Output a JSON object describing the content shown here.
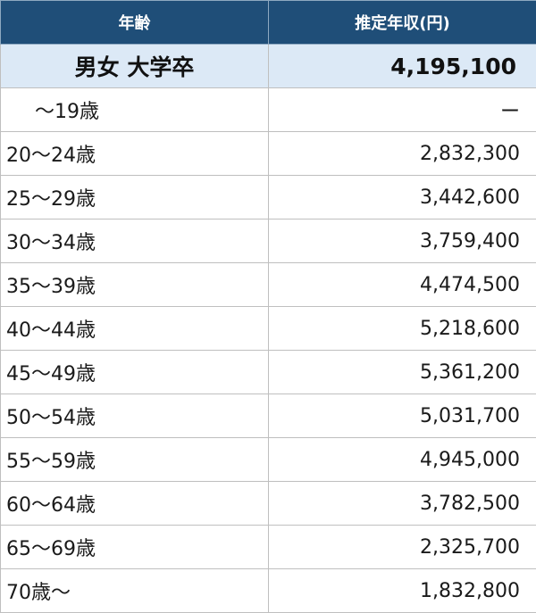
{
  "header": {
    "age_label": "年齢",
    "income_label": "推定年収(円)"
  },
  "summary": {
    "label": "男女 大学卒",
    "value": "4,195,100"
  },
  "rows": [
    {
      "age": "～19歳",
      "income": "ー"
    },
    {
      "age": "20～24歳",
      "income": "2,832,300"
    },
    {
      "age": "25～29歳",
      "income": "3,442,600"
    },
    {
      "age": "30～34歳",
      "income": "3,759,400"
    },
    {
      "age": "35～39歳",
      "income": "4,474,500"
    },
    {
      "age": "40～44歳",
      "income": "5,218,600"
    },
    {
      "age": "45～49歳",
      "income": "5,361,200"
    },
    {
      "age": "50～54歳",
      "income": "5,031,700"
    },
    {
      "age": "55～59歳",
      "income": "4,945,000"
    },
    {
      "age": "60～64歳",
      "income": "3,782,500"
    },
    {
      "age": "65～69歳",
      "income": "2,325,700"
    },
    {
      "age": "70歳～",
      "income": "1,832,800"
    }
  ]
}
